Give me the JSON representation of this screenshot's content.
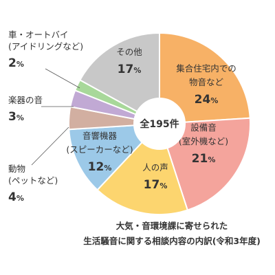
{
  "chart_data": {
    "type": "pie",
    "center_label": "全195件",
    "title": [
      "大気・音環境課に寄せられた",
      "生活騒音に関する相談内容の内訳(令和3年度)"
    ],
    "unit": "%",
    "slices": [
      {
        "label": [
          "集合住宅内での",
          "物音など"
        ],
        "value": 24,
        "color": "#F7B166"
      },
      {
        "label": [
          "設備音",
          "(室外機など)"
        ],
        "value": 21,
        "color": "#F4A49C"
      },
      {
        "label": [
          "人の声"
        ],
        "value": 17,
        "color": "#FCD56F"
      },
      {
        "label": [
          "音響機器",
          "(スピーカーなど)"
        ],
        "value": 12,
        "color": "#9CC9E8"
      },
      {
        "label": [
          "動物",
          "(ペットなど)"
        ],
        "value": 4,
        "color": "#D2AFA1"
      },
      {
        "label": [
          "楽器の音"
        ],
        "value": 3,
        "color": "#C1A9D4"
      },
      {
        "label": [
          "車・オートバイ",
          "(アイドリングなど)"
        ],
        "value": 2,
        "color": "#A8D89A"
      },
      {
        "label": [
          "その他"
        ],
        "value": 17,
        "color": "#C8C8C8"
      }
    ]
  }
}
